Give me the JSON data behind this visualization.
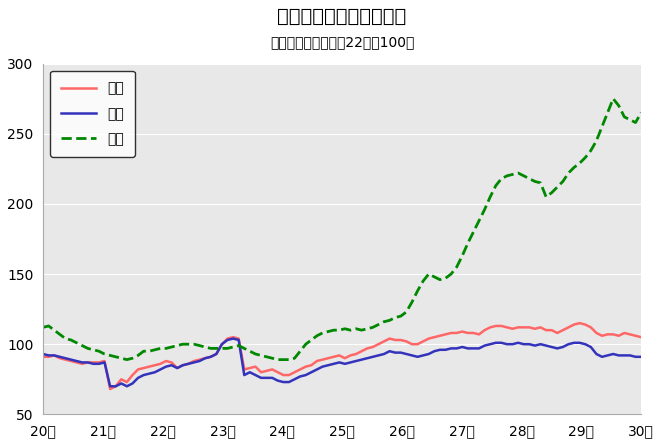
{
  "title": "鳥取県鉱工業指数の推移",
  "subtitle": "（季節調整済、平成22年＝100）",
  "ylim": [
    50,
    300
  ],
  "yticks": [
    50,
    100,
    150,
    200,
    250,
    300
  ],
  "figure_bg_color": "#ffffff",
  "plot_bg_color": "#e8e8e8",
  "legend_labels": [
    "生産",
    "出荷",
    "在庫"
  ],
  "colors": [
    "#ff6666",
    "#3333bb",
    "#008800"
  ],
  "linestyles": [
    "-",
    "-",
    "--"
  ],
  "linewidths": [
    1.8,
    1.8,
    2.0
  ],
  "x_tick_labels": [
    "20年",
    "21年",
    "22年",
    "23年",
    "24年",
    "25年",
    "26年",
    "27年",
    "28年",
    "29年",
    "30年"
  ],
  "production": [
    91,
    91,
    92,
    90,
    89,
    88,
    87,
    86,
    87,
    87,
    87,
    88,
    68,
    70,
    75,
    73,
    78,
    82,
    83,
    84,
    85,
    86,
    88,
    87,
    83,
    85,
    86,
    88,
    89,
    90,
    91,
    93,
    100,
    104,
    105,
    104,
    82,
    83,
    84,
    80,
    81,
    82,
    80,
    78,
    78,
    80,
    82,
    84,
    85,
    88,
    89,
    90,
    91,
    92,
    90,
    92,
    93,
    95,
    97,
    98,
    100,
    102,
    104,
    103,
    103,
    102,
    100,
    100,
    102,
    104,
    105,
    106,
    107,
    108,
    108,
    109,
    108,
    108,
    107,
    110,
    112,
    113,
    113,
    112,
    111,
    112,
    112,
    112,
    111,
    112,
    110,
    110,
    108,
    110,
    112,
    114,
    115,
    114,
    112,
    108,
    106,
    107,
    107,
    106,
    108,
    107,
    106,
    105
  ],
  "shipment": [
    93,
    92,
    92,
    91,
    90,
    89,
    88,
    87,
    87,
    86,
    86,
    87,
    70,
    70,
    72,
    70,
    72,
    76,
    78,
    79,
    80,
    82,
    84,
    85,
    83,
    85,
    86,
    87,
    88,
    90,
    91,
    93,
    100,
    103,
    104,
    103,
    78,
    80,
    78,
    76,
    76,
    76,
    74,
    73,
    73,
    75,
    77,
    78,
    80,
    82,
    84,
    85,
    86,
    87,
    86,
    87,
    88,
    89,
    90,
    91,
    92,
    93,
    95,
    94,
    94,
    93,
    92,
    91,
    92,
    93,
    95,
    96,
    96,
    97,
    97,
    98,
    97,
    97,
    97,
    99,
    100,
    101,
    101,
    100,
    100,
    101,
    100,
    100,
    99,
    100,
    99,
    98,
    97,
    98,
    100,
    101,
    101,
    100,
    98,
    93,
    91,
    92,
    93,
    92,
    92,
    92,
    91,
    91
  ],
  "inventory": [
    112,
    113,
    110,
    107,
    104,
    103,
    101,
    99,
    97,
    96,
    95,
    93,
    92,
    91,
    90,
    89,
    90,
    92,
    95,
    95,
    96,
    97,
    97,
    98,
    99,
    100,
    100,
    100,
    99,
    98,
    97,
    97,
    97,
    97,
    98,
    99,
    97,
    95,
    93,
    92,
    91,
    90,
    89,
    89,
    89,
    90,
    95,
    100,
    103,
    106,
    108,
    109,
    110,
    110,
    111,
    110,
    111,
    110,
    111,
    112,
    114,
    116,
    117,
    119,
    120,
    123,
    130,
    138,
    145,
    150,
    148,
    146,
    147,
    150,
    155,
    163,
    172,
    180,
    188,
    196,
    205,
    213,
    218,
    220,
    221,
    222,
    220,
    218,
    216,
    215,
    205,
    208,
    212,
    216,
    222,
    226,
    229,
    233,
    238,
    245,
    255,
    265,
    275,
    270,
    262,
    260,
    258,
    265
  ]
}
